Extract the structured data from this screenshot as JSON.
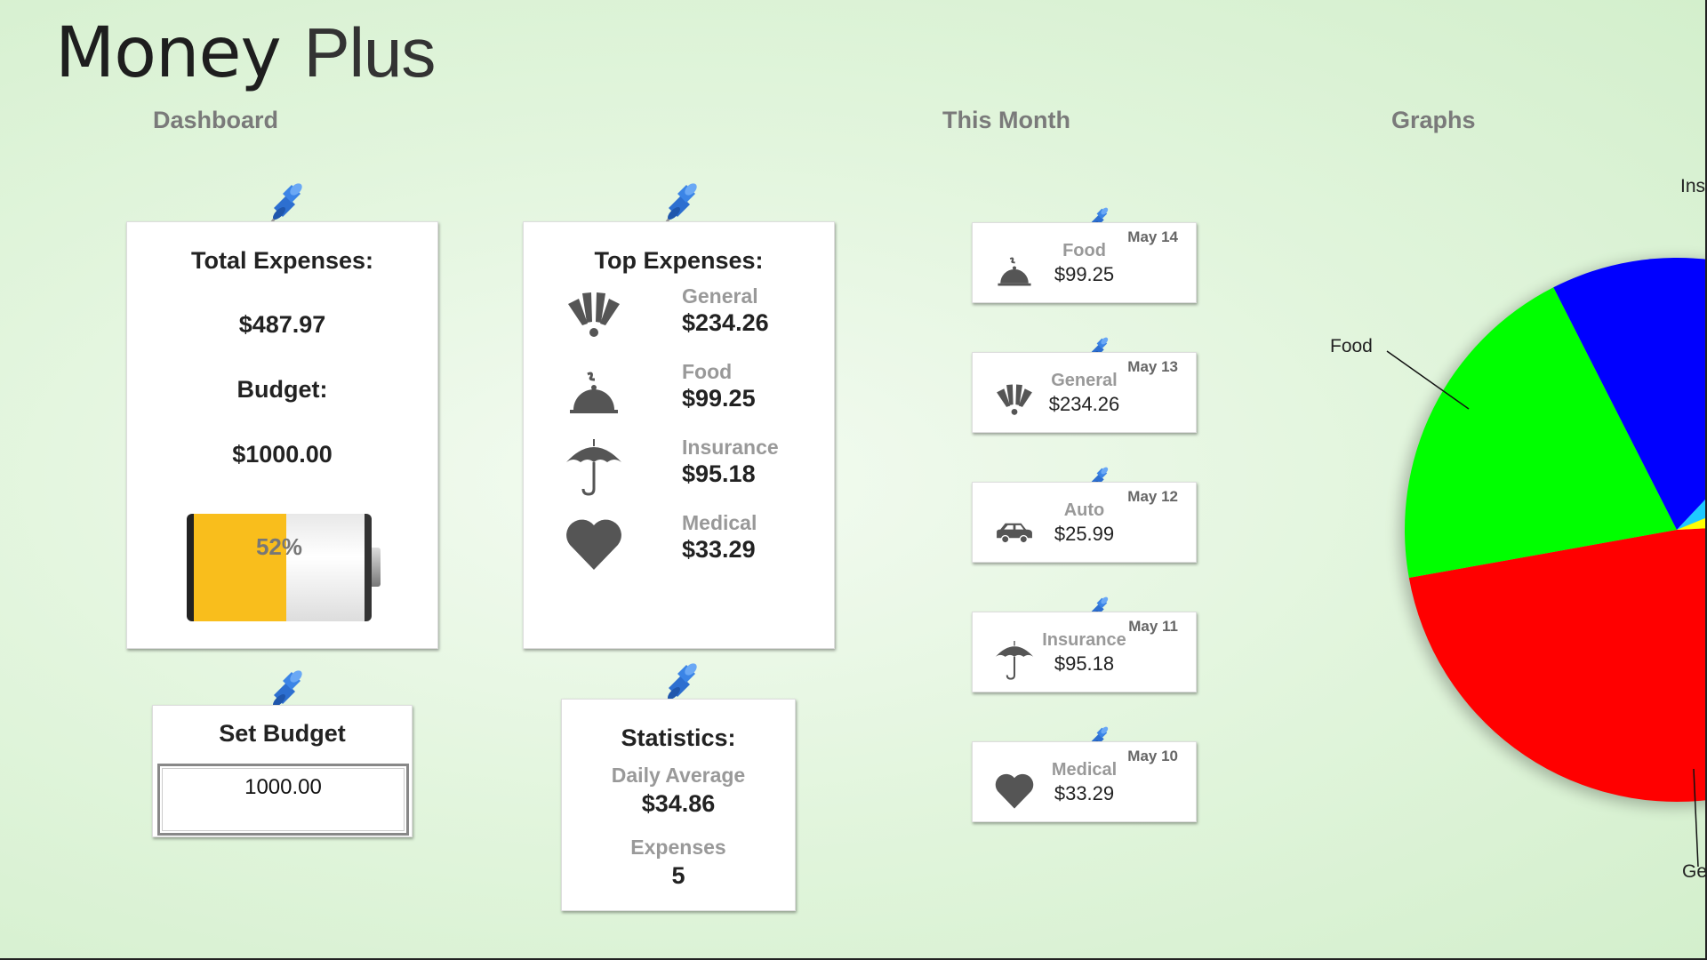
{
  "app": {
    "title_main": "Money",
    "title_sub": "Plus"
  },
  "sections": {
    "dashboard": "Dashboard",
    "this_month": "This Month",
    "graphs": "Graphs"
  },
  "total_card": {
    "total_label": "Total Expenses:",
    "total_value": "$487.97",
    "budget_label": "Budget:",
    "budget_value": "$1000.00",
    "battery_percent_label": "52%",
    "battery_fill_percent": 52,
    "battery_color": "#f9be1c"
  },
  "top_expenses": {
    "title": "Top Expenses:",
    "items": [
      {
        "category": "General",
        "amount": "$234.26",
        "icon": "exclamation-fan-icon"
      },
      {
        "category": "Food",
        "amount": "$99.25",
        "icon": "food-cloche-icon"
      },
      {
        "category": "Insurance",
        "amount": "$95.18",
        "icon": "umbrella-icon"
      },
      {
        "category": "Medical",
        "amount": "$33.29",
        "icon": "heart-icon"
      }
    ]
  },
  "set_budget": {
    "title": "Set Budget",
    "value": "1000.00"
  },
  "statistics": {
    "title": "Statistics:",
    "daily_average_label": "Daily Average",
    "daily_average_value": "$34.86",
    "expenses_label": "Expenses",
    "expenses_value": "5"
  },
  "this_month": [
    {
      "date": "May 14",
      "category": "Food",
      "amount": "$99.25",
      "icon": "food-cloche-icon"
    },
    {
      "date": "May 13",
      "category": "General",
      "amount": "$234.26",
      "icon": "exclamation-fan-icon"
    },
    {
      "date": "May 12",
      "category": "Auto",
      "amount": "$25.99",
      "icon": "car-icon"
    },
    {
      "date": "May 11",
      "category": "Insurance",
      "amount": "$95.18",
      "icon": "umbrella-icon"
    },
    {
      "date": "May 10",
      "category": "Medical",
      "amount": "$33.29",
      "icon": "heart-icon"
    }
  ],
  "chart_data": {
    "type": "pie",
    "categories": [
      "General",
      "Food",
      "Insurance",
      "Medical",
      "Auto"
    ],
    "values": [
      234.26,
      99.25,
      95.18,
      33.29,
      25.99
    ],
    "colors": [
      "#ff0000",
      "#00ff00",
      "#0000ff",
      "#1ec8ff",
      "#ffff00"
    ],
    "visible_labels": {
      "General": "Gen",
      "Food": "Food",
      "Insurance": "Ins"
    }
  }
}
